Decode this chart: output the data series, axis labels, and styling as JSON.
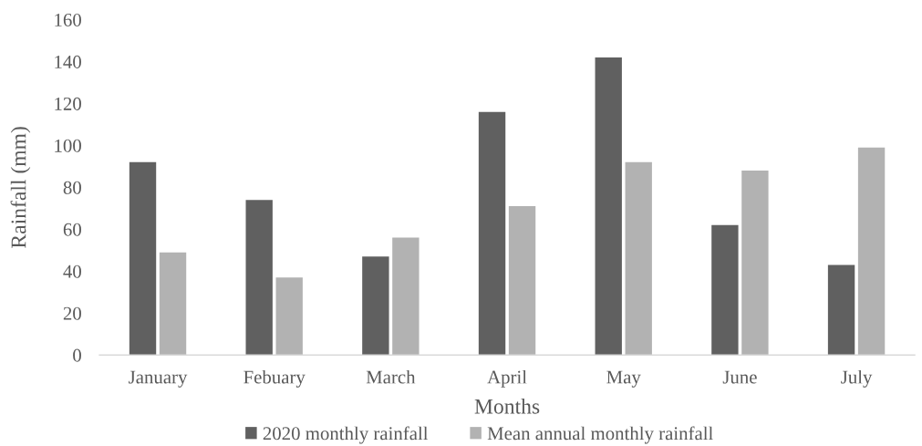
{
  "chart_data": {
    "type": "bar",
    "xlabel": "Months",
    "ylabel": "Rainfall (mm)",
    "categories": [
      "January",
      "Febuary",
      "March",
      "April",
      "May",
      "June",
      "July"
    ],
    "series": [
      {
        "name": "2020 monthly rainfall",
        "color": "#606060",
        "values": [
          92,
          74,
          47,
          116,
          142,
          62,
          43
        ]
      },
      {
        "name": "Mean annual monthly rainfall",
        "color": "#b2b2b2",
        "values": [
          49,
          37,
          56,
          71,
          92,
          88,
          99
        ]
      }
    ],
    "ylim": [
      0,
      160
    ],
    "yticks": [
      0,
      20,
      40,
      60,
      80,
      100,
      120,
      140,
      160
    ],
    "legend": "bottom"
  }
}
